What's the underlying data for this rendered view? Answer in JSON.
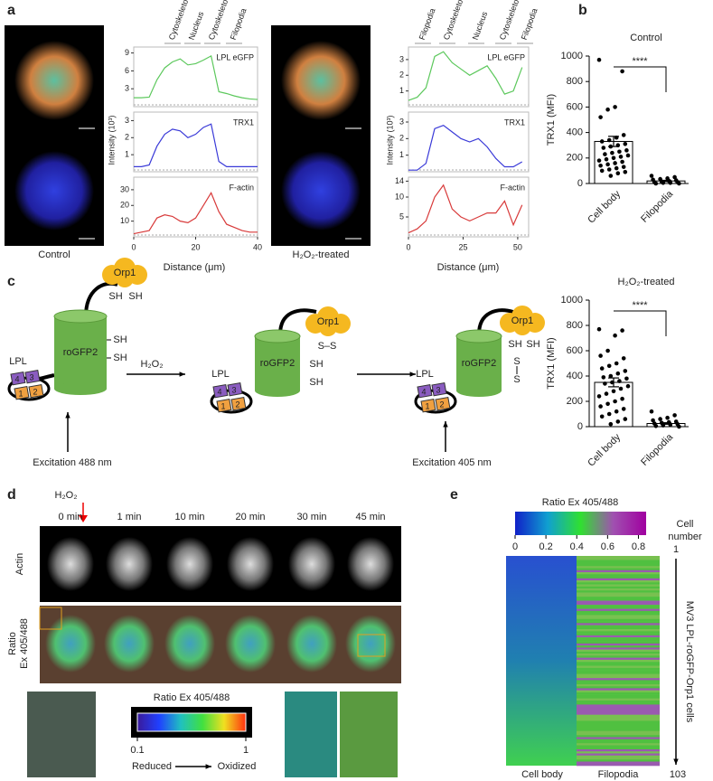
{
  "panel_letters": [
    "a",
    "b",
    "c",
    "d",
    "e"
  ],
  "panel_a": {
    "left_label": "Control",
    "right_label": "H₂O₂-treated",
    "left_regions": [
      "Cytoskeleton",
      "Nucleus",
      "Cytoskeleton",
      "Filopodia"
    ],
    "right_regions": [
      "Filopodia",
      "Cytoskeleton",
      "Nucleus",
      "Cytoskeleton",
      "Filopodia"
    ],
    "xlabel": "Distance (μm)",
    "ylabel": "Intensity (10³)"
  },
  "chart_data": [
    {
      "type": "line",
      "title": "LPL eGFP",
      "color": "#5cc85c",
      "x": [
        0,
        2.5,
        5,
        7.5,
        10,
        12.5,
        15,
        17.5,
        20,
        22.5,
        25,
        27.5,
        30,
        32.5,
        35,
        37.5,
        40
      ],
      "values": [
        1.5,
        1.5,
        1.6,
        4.5,
        6.5,
        7.5,
        8,
        7,
        7.2,
        7.8,
        8.5,
        2.5,
        2.2,
        1.8,
        1.5,
        1.3,
        1.2
      ],
      "xlim": [
        0,
        40
      ],
      "ylim": [
        0,
        10
      ],
      "yticks": [
        3,
        6,
        9
      ]
    },
    {
      "type": "line",
      "title": "TRX1",
      "color": "#3a3ad8",
      "x": [
        0,
        2.5,
        5,
        7.5,
        10,
        12.5,
        15,
        17.5,
        20,
        22.5,
        25,
        27.5,
        30,
        32.5,
        35,
        37.5,
        40
      ],
      "values": [
        0.3,
        0.3,
        0.4,
        1.5,
        2.2,
        2.5,
        2.4,
        2.0,
        2.2,
        2.6,
        2.8,
        0.6,
        0.3,
        0.3,
        0.3,
        0.3,
        0.3
      ],
      "xlim": [
        0,
        40
      ],
      "ylim": [
        0,
        3.5
      ],
      "yticks": [
        1,
        2,
        3
      ]
    },
    {
      "type": "line",
      "title": "F-actin",
      "color": "#d83a3a",
      "x": [
        0,
        2.5,
        5,
        7.5,
        10,
        12.5,
        15,
        17.5,
        20,
        22.5,
        25,
        27.5,
        30,
        32.5,
        35,
        37.5,
        40
      ],
      "values": [
        2,
        3,
        4,
        12,
        14,
        13,
        10,
        9,
        12,
        20,
        28,
        16,
        8,
        6,
        4,
        3,
        3
      ],
      "xlim": [
        0,
        40
      ],
      "ylim": [
        0,
        38
      ],
      "yticks": [
        10,
        20,
        30
      ],
      "xticks": [
        0,
        20,
        40
      ]
    },
    {
      "type": "line",
      "title": "LPL eGFP",
      "color": "#5cc85c",
      "x": [
        0,
        4,
        8,
        12,
        16,
        20,
        24,
        28,
        32,
        36,
        40,
        44,
        48,
        52
      ],
      "values": [
        0.4,
        0.6,
        1.2,
        3.2,
        3.5,
        2.8,
        2.4,
        2.0,
        2.3,
        2.6,
        1.8,
        0.8,
        1.0,
        2.5
      ],
      "xlim": [
        0,
        55
      ],
      "ylim": [
        0,
        3.8
      ],
      "yticks": [
        1,
        2,
        3
      ]
    },
    {
      "type": "line",
      "title": "TRX1",
      "color": "#3a3ad8",
      "x": [
        0,
        4,
        8,
        12,
        16,
        20,
        24,
        28,
        32,
        36,
        40,
        44,
        48,
        52
      ],
      "values": [
        0.1,
        0.1,
        0.5,
        2.6,
        2.8,
        2.4,
        2.0,
        1.8,
        2.0,
        1.5,
        0.8,
        0.3,
        0.3,
        0.6
      ],
      "xlim": [
        0,
        55
      ],
      "ylim": [
        0,
        3.6
      ],
      "yticks": [
        1,
        2,
        3
      ]
    },
    {
      "type": "line",
      "title": "F-actin",
      "color": "#d83a3a",
      "x": [
        0,
        4,
        8,
        12,
        16,
        20,
        24,
        28,
        32,
        36,
        40,
        44,
        48,
        52
      ],
      "values": [
        1,
        2,
        4,
        10,
        13,
        7,
        5,
        4,
        5,
        6,
        6,
        9,
        3,
        8
      ],
      "xlim": [
        0,
        55
      ],
      "ylim": [
        0,
        15
      ],
      "yticks": [
        5,
        10,
        14
      ],
      "xticks": [
        0,
        25,
        50
      ]
    },
    {
      "type": "bar",
      "title": "Control",
      "ylabel": "TRX1 (MFI)",
      "annotation": "****",
      "categories": [
        "Cell body",
        "Filopodia"
      ],
      "values": [
        330,
        20
      ],
      "errors": [
        40,
        5
      ],
      "points": [
        [
          970,
          880,
          600,
          580,
          520,
          380,
          360,
          340,
          330,
          310,
          300,
          290,
          280,
          260,
          250,
          240,
          230,
          220,
          210,
          200,
          190,
          180,
          170,
          160,
          150,
          140,
          130,
          120,
          110,
          100,
          90,
          80,
          60
        ],
        [
          60,
          50,
          40,
          35,
          30,
          25,
          20,
          15,
          10,
          10,
          5,
          5,
          0,
          0
        ]
      ],
      "ylim": [
        0,
        1000
      ],
      "yticks": [
        0,
        200,
        400,
        600,
        800,
        1000
      ]
    },
    {
      "type": "bar",
      "title": "H₂O₂-treated",
      "ylabel": "TRX1 (MFI)",
      "annotation": "****",
      "categories": [
        "Cell body",
        "Filopodia"
      ],
      "values": [
        350,
        25
      ],
      "errors": [
        35,
        6
      ],
      "points": [
        [
          770,
          760,
          720,
          600,
          560,
          540,
          500,
          480,
          460,
          440,
          420,
          400,
          390,
          380,
          360,
          350,
          340,
          320,
          300,
          280,
          260,
          240,
          220,
          200,
          180,
          160,
          140,
          120,
          100,
          80,
          60,
          40,
          20
        ],
        [
          120,
          90,
          70,
          60,
          50,
          40,
          35,
          30,
          25,
          20,
          15,
          10,
          5,
          0
        ]
      ],
      "ylim": [
        0,
        1000
      ],
      "yticks": [
        0,
        200,
        400,
        600,
        800,
        1000
      ]
    }
  ],
  "panel_c": {
    "orp1": "Orp1",
    "rogfp2": "roGFP2",
    "lpl": "LPL",
    "domains": [
      "4",
      "3",
      "1",
      "2"
    ],
    "sh": "SH",
    "ss": "S–S",
    "s": "S",
    "h2o2": "H₂O₂",
    "excitation_488": "Excitation 488 nm",
    "excitation_405": "Excitation 405 nm"
  },
  "panel_d": {
    "h2o2": "H₂O₂",
    "times": [
      "0 min",
      "1 min",
      "10 min",
      "20 min",
      "30 min",
      "45 min"
    ],
    "actin_label": "Actin",
    "ratio_label": [
      "Ratio",
      "Ex 405/488"
    ],
    "colorbar": {
      "title": "Ratio  Ex 405/488",
      "lim": [
        0.1,
        1
      ],
      "ticks": [
        0.1,
        1
      ],
      "left": "Reduced",
      "right": "Oxidized"
    }
  },
  "panel_e": {
    "colorbar_title": "Ratio Ex 405/488",
    "colorbar_lim": [
      0,
      0.85
    ],
    "colorbar_ticks": [
      0,
      0.2,
      0.4,
      0.6,
      0.8
    ],
    "cell_number_label": [
      "Cell",
      "number"
    ],
    "first_cell": 1,
    "last_cell": 103,
    "side_label": "MV3 LPL-roGFP-Orp1 cells",
    "columns": [
      "Cell body",
      "Filopodia"
    ]
  }
}
